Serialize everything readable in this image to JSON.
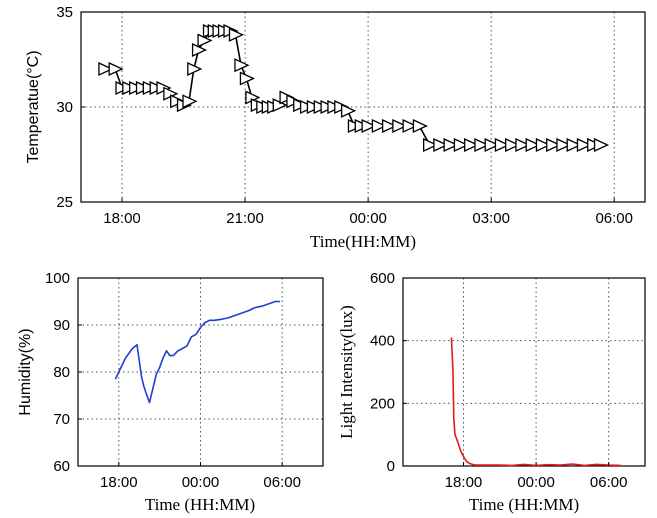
{
  "chart_data": [
    {
      "type": "line",
      "ylabel": "Temperatue(°C)",
      "xlabel": "Time(HH:MM)",
      "xlim": [
        "17:00",
        "06:45"
      ],
      "ylim": [
        25,
        35
      ],
      "yticks": [
        "25",
        "30",
        "35"
      ],
      "xticks": [
        "18:00",
        "21:00",
        "00:00",
        "03:00",
        "06:00"
      ],
      "grid": true,
      "marker": "triangle-right",
      "series": [
        {
          "color": "#000000",
          "x": [
            "17:35",
            "17:50",
            "18:00",
            "18:10",
            "18:20",
            "18:30",
            "18:40",
            "18:50",
            "19:00",
            "19:10",
            "19:20",
            "19:30",
            "19:38",
            "19:45",
            "19:52",
            "20:00",
            "20:08",
            "20:15",
            "20:22",
            "20:30",
            "20:38",
            "20:46",
            "20:54",
            "21:02",
            "21:10",
            "21:18",
            "21:26",
            "21:34",
            "21:42",
            "21:50",
            "22:00",
            "22:10",
            "22:20",
            "22:30",
            "22:40",
            "22:50",
            "23:00",
            "23:10",
            "23:20",
            "23:30",
            "23:40",
            "23:50",
            "00:00",
            "00:15",
            "00:30",
            "00:45",
            "01:00",
            "01:15",
            "01:30",
            "01:45",
            "02:00",
            "02:15",
            "02:30",
            "02:45",
            "03:00",
            "03:15",
            "03:30",
            "03:45",
            "04:00",
            "04:15",
            "04:30",
            "04:45",
            "05:00",
            "05:15",
            "05:30",
            "05:40"
          ],
          "y": [
            32,
            32,
            31,
            31,
            31,
            31,
            31,
            31,
            31,
            30.7,
            30.3,
            30.1,
            30.3,
            32,
            33,
            33.5,
            34,
            34,
            34,
            34,
            34,
            33.8,
            32.2,
            31.5,
            30.5,
            30.1,
            30,
            30,
            30,
            30.1,
            30.5,
            30.3,
            30.1,
            30,
            30,
            30,
            30,
            30,
            30,
            29.8,
            29,
            29,
            29,
            29,
            29,
            29,
            29,
            29,
            28,
            28,
            28,
            28,
            28,
            28,
            28,
            28,
            28,
            28,
            28,
            28,
            28,
            28,
            28,
            28,
            28,
            28
          ]
        }
      ]
    },
    {
      "type": "line",
      "ylabel": "Humidity(%)",
      "xlabel": "Time (HH:MM)",
      "xlim": [
        "15:00",
        "09:00"
      ],
      "ylim": [
        60,
        100
      ],
      "yticks": [
        "60",
        "70",
        "80",
        "90",
        "100"
      ],
      "xticks": [
        "18:00",
        "00:00",
        "06:00"
      ],
      "grid": true,
      "series": [
        {
          "color": "#1f3fd0",
          "x": [
            "17:45",
            "18:00",
            "18:30",
            "19:00",
            "19:20",
            "19:40",
            "19:50",
            "20:00",
            "20:15",
            "20:30",
            "20:45",
            "21:00",
            "21:15",
            "21:30",
            "21:45",
            "22:00",
            "22:20",
            "22:40",
            "23:00",
            "23:20",
            "23:40",
            "00:00",
            "00:20",
            "00:40",
            "01:00",
            "01:30",
            "02:00",
            "02:30",
            "03:00",
            "03:30",
            "04:00",
            "04:30",
            "05:00",
            "05:30",
            "05:50"
          ],
          "y": [
            78.5,
            80,
            83,
            85,
            85.8,
            79,
            77,
            75.5,
            73.5,
            76.5,
            79.5,
            81,
            83,
            84.5,
            83.5,
            83.5,
            84.5,
            85,
            85.5,
            87.5,
            88,
            89.5,
            90.5,
            91,
            91,
            91.2,
            91.5,
            92,
            92.5,
            93,
            93.7,
            94,
            94.5,
            95,
            95
          ]
        }
      ]
    },
    {
      "type": "line",
      "ylabel": "Light  Intensity(lux)",
      "xlabel": "Time (HH:MM)",
      "xlim": [
        "13:00",
        "09:00"
      ],
      "ylim": [
        0,
        600
      ],
      "yticks": [
        "0",
        "200",
        "400",
        "600"
      ],
      "xticks": [
        "18:00",
        "00:00",
        "06:00"
      ],
      "grid": true,
      "series": [
        {
          "color": "#e01b1b",
          "x": [
            "17:00",
            "17:08",
            "17:12",
            "17:18",
            "17:30",
            "17:45",
            "18:00",
            "18:15",
            "18:30",
            "18:45",
            "19:00",
            "19:30",
            "20:00",
            "21:00",
            "22:00",
            "23:00",
            "00:00",
            "01:00",
            "02:00",
            "03:00",
            "04:00",
            "05:00",
            "06:00",
            "07:00"
          ],
          "y": [
            410,
            300,
            150,
            100,
            80,
            50,
            30,
            15,
            8,
            5,
            3,
            3,
            3,
            3,
            2,
            5,
            2,
            4,
            3,
            6,
            2,
            5,
            3,
            2
          ]
        }
      ]
    }
  ]
}
